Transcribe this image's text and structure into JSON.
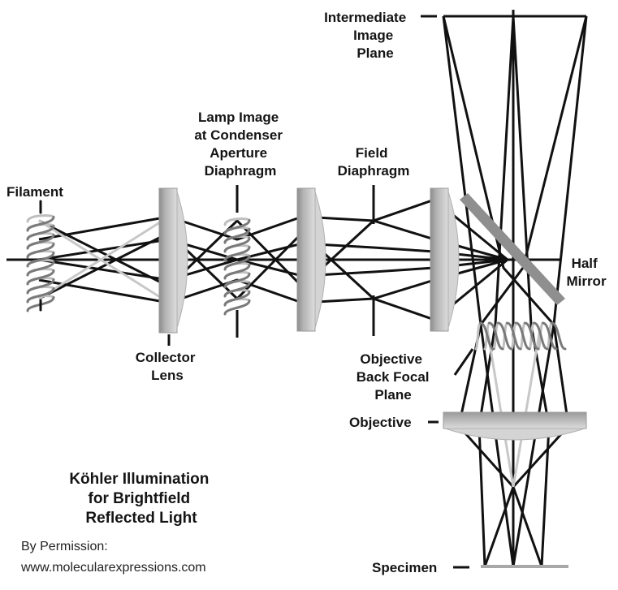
{
  "labels": {
    "filament": "Filament",
    "lamp_image": [
      "Lamp Image",
      "at Condenser",
      "Aperture",
      "Diaphragm"
    ],
    "field_diaphragm": [
      "Field",
      "Diaphragm"
    ],
    "intermediate_image_plane": [
      "Intermediate",
      "Image",
      "Plane"
    ],
    "half_mirror": [
      "Half",
      "Mirror"
    ],
    "collector_lens": [
      "Collector",
      "Lens"
    ],
    "objective_back_focal_plane": [
      "Objective",
      "Back Focal",
      "Plane"
    ],
    "objective": "Objective",
    "specimen": "Specimen"
  },
  "title": [
    "Köhler Illumination",
    "for Brightfield",
    "Reflected Light"
  ],
  "credit": [
    "By Permission:",
    "www.molecularexpressions.com"
  ],
  "colors": {
    "ray": "#111111",
    "ray_light": "#c8c8c8",
    "lens_light": "#d4d4d4",
    "lens_mid": "#a8a8a8",
    "lens_dark": "#8c8c8c",
    "mirror": "#8f8f8f",
    "text": "#141414"
  }
}
